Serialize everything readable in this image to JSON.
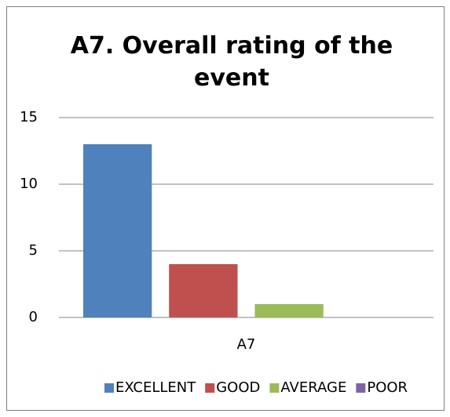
{
  "chart_data": {
    "type": "bar",
    "title": "A7. Overall rating of the event",
    "categories": [
      "A7"
    ],
    "series": [
      {
        "name": "EXCELLENT",
        "color": "#4f81bd",
        "values": [
          13
        ]
      },
      {
        "name": "GOOD",
        "color": "#c0504d",
        "values": [
          4
        ]
      },
      {
        "name": "AVERAGE",
        "color": "#9bbb59",
        "values": [
          1
        ]
      },
      {
        "name": "POOR",
        "color": "#8064a2",
        "values": [
          0
        ]
      }
    ],
    "ylim": [
      0,
      15
    ],
    "yticks": [
      0,
      5,
      10,
      15
    ],
    "grid": true,
    "legend": "bottom"
  }
}
